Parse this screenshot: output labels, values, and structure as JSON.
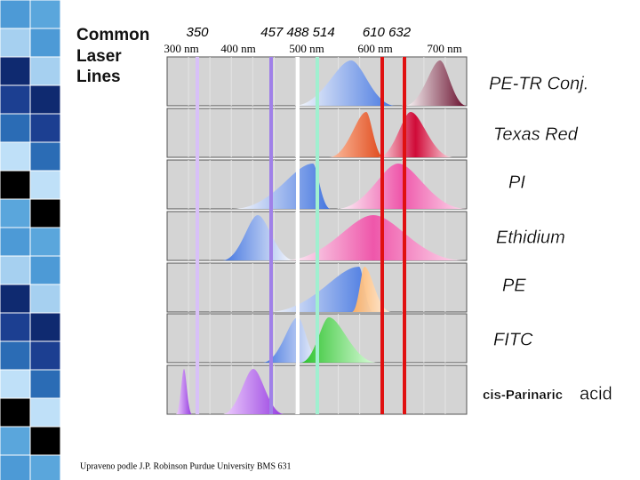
{
  "heading": [
    "Common",
    "Laser",
    "Lines"
  ],
  "laser_lines": [
    "350",
    "457 488 514",
    "610 632"
  ],
  "wavelength_axis": [
    "300 nm",
    "400 nm",
    "500 nm",
    "600 nm",
    "700 nm"
  ],
  "dyes": [
    "PE-TR Conj.",
    "Texas Red",
    "PI",
    "Ethidium",
    "PE",
    "FITC",
    "cis-Parinaric"
  ],
  "last_dye_suffix": "acid",
  "credit": "Upraveno podle J.P. Robinson Purdue University BMS 631"
}
